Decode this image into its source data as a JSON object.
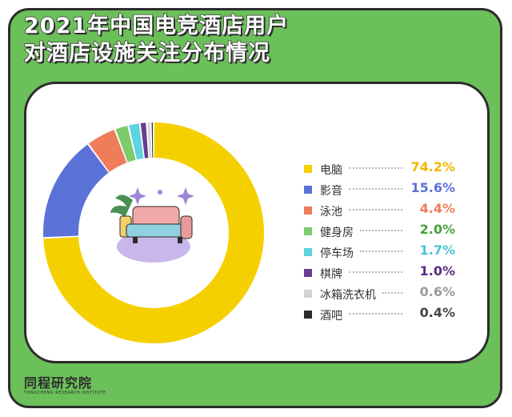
{
  "title_lines": [
    "2021年中国电竞酒店用户",
    "对酒店设施关注分布情况"
  ],
  "chart_data": {
    "type": "pie",
    "variant": "donut",
    "title": "2021年中国电竞酒店用户对酒店设施关注分布情况",
    "legend_position": "right",
    "categories": [
      "电脑",
      "影音",
      "泳池",
      "健身房",
      "停车场",
      "棋牌",
      "冰箱洗衣机",
      "酒吧"
    ],
    "values": [
      74.2,
      15.6,
      4.4,
      2.0,
      1.7,
      1.0,
      0.6,
      0.4
    ],
    "value_labels": [
      "74.2%",
      "15.6%",
      "4.4%",
      "2.0%",
      "1.7%",
      "1.0%",
      "0.6%",
      "0.4%"
    ],
    "colors": [
      "#f5d000",
      "#5b72d8",
      "#ef7d5a",
      "#7ecb6e",
      "#5fd3e0",
      "#6a3d8f",
      "#d3d3d3",
      "#2b2b2b"
    ],
    "value_colors": [
      "#f0b800",
      "#5b72d8",
      "#ef7d5a",
      "#4aa23e",
      "#4cc4d6",
      "#5a2d80",
      "#9a9a9a",
      "#444444"
    ]
  },
  "colors": {
    "frame": "#6cc05a",
    "outline": "#2c2c2c"
  },
  "icons": [
    "sparkle-icon",
    "sofa-plant-illustration"
  ],
  "logo": {
    "name": "同程研究院",
    "subtitle": "TONGCHENG RESEARCH INSTITUTE"
  }
}
